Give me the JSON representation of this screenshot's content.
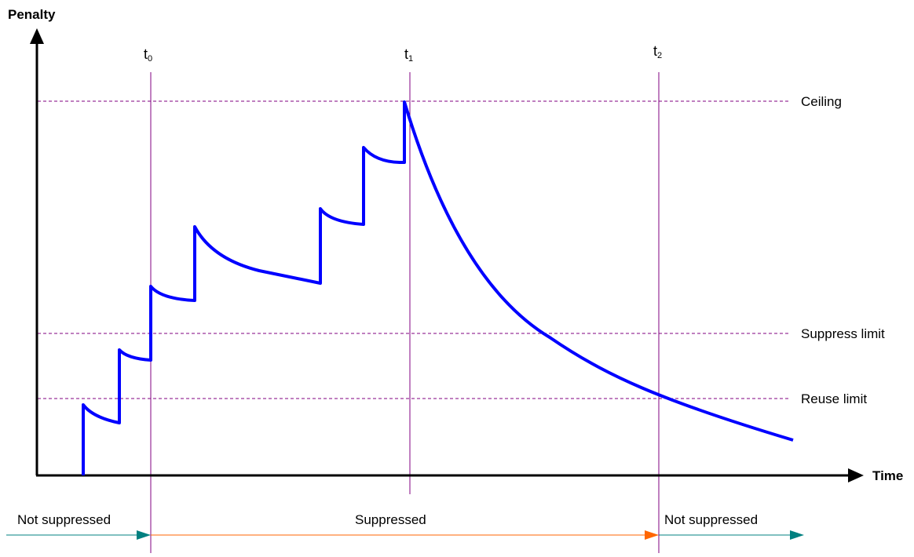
{
  "axes": {
    "y_label": "Penalty",
    "x_label": "Time"
  },
  "thresholds": {
    "ceiling": "Ceiling",
    "suppress_limit": "Suppress limit",
    "reuse_limit": "Reuse limit"
  },
  "time_markers": [
    {
      "base": "t",
      "sub": "0"
    },
    {
      "base": "t",
      "sub": "1"
    },
    {
      "base": "t",
      "sub": "2"
    }
  ],
  "states": {
    "not_suppressed_before": "Not suppressed",
    "suppressed": "Suppressed",
    "not_suppressed_after": "Not suppressed"
  },
  "colors": {
    "curve": "#0000ff",
    "threshold_line": "#800080",
    "marker_line": "#800080",
    "state_arrow_normal": "#008080",
    "state_arrow_suppressed": "#ff6600",
    "axis": "#000000"
  }
}
